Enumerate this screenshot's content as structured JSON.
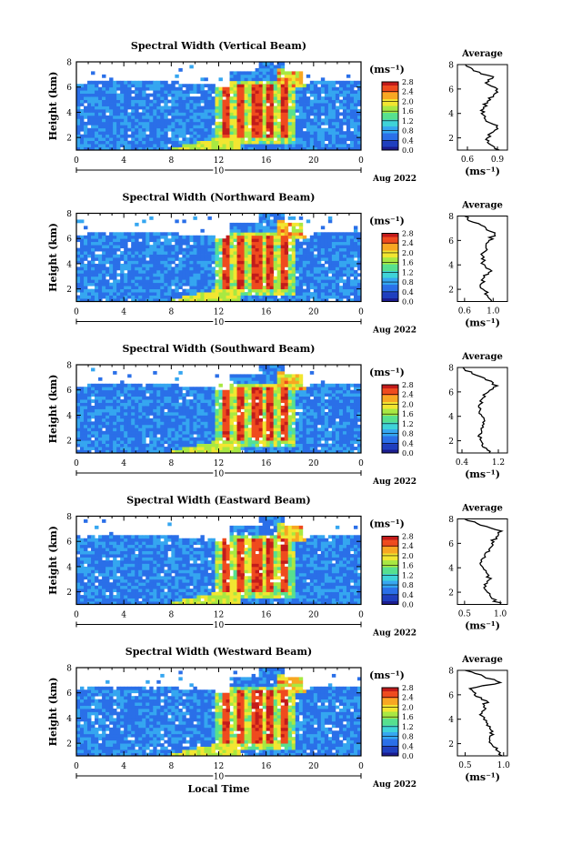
{
  "figure": {
    "xlabel_bottom": "Local Time",
    "date_label": "Aug 2022",
    "colorbar_unit": "(ms⁻¹)",
    "avg_title": "Average",
    "avg_xlabel": "(ms⁻¹)",
    "colormap": [
      "#1a1a8c",
      "#1f3fbf",
      "#2a6fe8",
      "#35a6f0",
      "#3fd3d8",
      "#57e08f",
      "#a8e842",
      "#f2e631",
      "#f7a722",
      "#ef4b1e",
      "#c21b1b"
    ],
    "colorbar_ticks": [
      "0.0",
      "0.4",
      "0.8",
      "1.2",
      "1.6",
      "2.0",
      "2.4",
      "2.8"
    ]
  },
  "chart_data": [
    {
      "type": "heatmap",
      "title": "Spectral Width (Vertical Beam)",
      "ylabel": "Height (km)",
      "xlim": [
        0,
        24
      ],
      "ylim": [
        1,
        8
      ],
      "x_ticks": [
        "0",
        "4",
        "8",
        "12",
        "16",
        "20",
        "0"
      ],
      "y_ticks": [
        "2",
        "4",
        "6",
        "8"
      ],
      "day_marker": "10",
      "colorbar_range": [
        0.0,
        2.8
      ],
      "average": {
        "xticks": [
          "0.6",
          "0.9"
        ],
        "xlim": [
          0.5,
          1.0
        ],
        "heights": [
          1,
          1.5,
          2,
          2.5,
          3,
          3.5,
          4,
          4.5,
          5,
          5.5,
          6,
          6.5,
          7,
          7.5,
          8
        ],
        "values": [
          0.92,
          0.82,
          0.8,
          0.86,
          0.9,
          0.78,
          0.74,
          0.76,
          0.8,
          0.86,
          0.9,
          0.78,
          0.86,
          0.66,
          0.58
        ]
      }
    },
    {
      "type": "heatmap",
      "title": "Spectral Width (Northward Beam)",
      "ylabel": "Height (km)",
      "xlim": [
        0,
        24
      ],
      "ylim": [
        1,
        8
      ],
      "x_ticks": [
        "0",
        "4",
        "8",
        "12",
        "16",
        "20",
        "0"
      ],
      "y_ticks": [
        "2",
        "4",
        "6",
        "8"
      ],
      "day_marker": "10",
      "colorbar_range": [
        0.0,
        2.8
      ],
      "average": {
        "xticks": [
          "0.6",
          "1.0"
        ],
        "xlim": [
          0.5,
          1.2
        ],
        "heights": [
          1,
          1.5,
          2,
          2.5,
          3,
          3.5,
          4,
          4.5,
          5,
          5.5,
          6,
          6.5,
          7,
          7.5,
          8
        ],
        "values": [
          0.98,
          0.92,
          0.86,
          0.84,
          0.88,
          0.98,
          0.88,
          0.84,
          0.86,
          0.9,
          0.94,
          1.02,
          0.9,
          0.72,
          0.6
        ]
      }
    },
    {
      "type": "heatmap",
      "title": "Spectral Width (Southward Beam)",
      "ylabel": "Height (km)",
      "xlim": [
        0,
        24
      ],
      "ylim": [
        1,
        8
      ],
      "x_ticks": [
        "0",
        "4",
        "8",
        "12",
        "16",
        "20",
        "0"
      ],
      "y_ticks": [
        "2",
        "4",
        "6",
        "8"
      ],
      "day_marker": "10",
      "colorbar_range": [
        0.0,
        2.8
      ],
      "average": {
        "xticks": [
          "0.4",
          "1.2"
        ],
        "xlim": [
          0.3,
          1.4
        ],
        "heights": [
          1,
          1.5,
          2,
          2.5,
          3,
          3.5,
          4,
          4.5,
          5,
          5.5,
          6,
          6.5,
          7,
          7.5,
          8
        ],
        "values": [
          1.0,
          0.86,
          0.82,
          0.78,
          0.82,
          0.86,
          0.84,
          0.8,
          0.8,
          0.86,
          0.98,
          1.18,
          0.92,
          0.62,
          0.42
        ]
      }
    },
    {
      "type": "heatmap",
      "title": "Spectral Width (Eastward Beam)",
      "ylabel": "Height (km)",
      "xlim": [
        0,
        24
      ],
      "ylim": [
        1,
        8
      ],
      "x_ticks": [
        "0",
        "4",
        "8",
        "12",
        "16",
        "20",
        "0"
      ],
      "y_ticks": [
        "2",
        "4",
        "6",
        "8"
      ],
      "day_marker": "10",
      "colorbar_range": [
        0.0,
        2.8
      ],
      "average": {
        "xticks": [
          "0.5",
          "1.0"
        ],
        "xlim": [
          0.4,
          1.1
        ],
        "heights": [
          1,
          1.5,
          2,
          2.5,
          3,
          3.5,
          4,
          4.5,
          5,
          5.5,
          6,
          6.5,
          7,
          7.5,
          8
        ],
        "values": [
          1.0,
          0.88,
          0.82,
          0.8,
          0.84,
          0.82,
          0.76,
          0.74,
          0.78,
          0.84,
          0.88,
          0.94,
          1.02,
          0.72,
          0.5
        ]
      }
    },
    {
      "type": "heatmap",
      "title": "Spectral Width (Westward Beam)",
      "ylabel": "Height (km)",
      "xlim": [
        0,
        24
      ],
      "ylim": [
        1,
        8
      ],
      "x_ticks": [
        "0",
        "4",
        "8",
        "12",
        "16",
        "20",
        "0"
      ],
      "y_ticks": [
        "2",
        "4",
        "6",
        "8"
      ],
      "day_marker": "10",
      "colorbar_range": [
        0.0,
        2.8
      ],
      "average": {
        "xticks": [
          "0.5",
          "1.0"
        ],
        "xlim": [
          0.4,
          1.05
        ],
        "heights": [
          1,
          1.5,
          2,
          2.5,
          3,
          3.5,
          4,
          4.5,
          5,
          5.5,
          6,
          6.5,
          7,
          7.5,
          8
        ],
        "values": [
          0.98,
          0.9,
          0.84,
          0.82,
          0.86,
          0.78,
          0.74,
          0.72,
          0.74,
          0.78,
          0.62,
          0.56,
          0.96,
          0.74,
          0.5
        ]
      }
    }
  ]
}
